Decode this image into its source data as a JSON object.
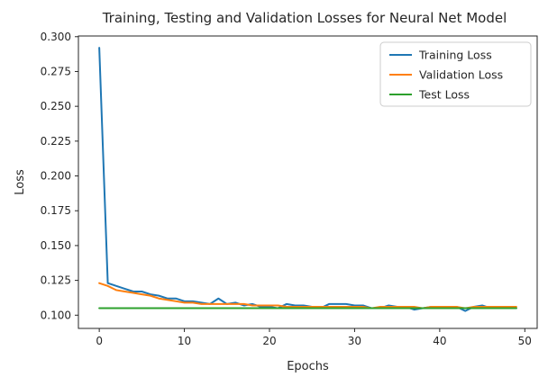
{
  "chart_data": {
    "type": "line",
    "title": "Training, Testing and Validation Losses for Neural Net Model",
    "xlabel": "Epochs",
    "ylabel": "Loss",
    "xlim": [
      -2.45,
      51.45
    ],
    "ylim": [
      0.0905,
      0.3005
    ],
    "xticks": [
      0,
      10,
      20,
      30,
      40,
      50
    ],
    "xtick_labels": [
      "0",
      "10",
      "20",
      "30",
      "40",
      "50"
    ],
    "yticks": [
      0.1,
      0.125,
      0.15,
      0.175,
      0.2,
      0.225,
      0.25,
      0.275,
      0.3
    ],
    "ytick_labels": [
      "0.100",
      "0.125",
      "0.150",
      "0.175",
      "0.200",
      "0.225",
      "0.250",
      "0.275",
      "0.300"
    ],
    "grid": false,
    "legend_position": "top-right",
    "x": [
      0,
      1,
      2,
      3,
      4,
      5,
      6,
      7,
      8,
      9,
      10,
      11,
      12,
      13,
      14,
      15,
      16,
      17,
      18,
      19,
      20,
      21,
      22,
      23,
      24,
      25,
      26,
      27,
      28,
      29,
      30,
      31,
      32,
      33,
      34,
      35,
      36,
      37,
      38,
      39,
      40,
      41,
      42,
      43,
      44,
      45,
      46,
      47,
      48,
      49
    ],
    "series": [
      {
        "name": "Training Loss",
        "color": "#1f77b4",
        "values": [
          0.292,
          0.123,
          0.121,
          0.119,
          0.117,
          0.117,
          0.115,
          0.114,
          0.112,
          0.112,
          0.11,
          0.11,
          0.109,
          0.108,
          0.112,
          0.108,
          0.109,
          0.107,
          0.108,
          0.106,
          0.106,
          0.105,
          0.108,
          0.107,
          0.107,
          0.106,
          0.105,
          0.108,
          0.108,
          0.108,
          0.107,
          0.107,
          0.105,
          0.105,
          0.107,
          0.106,
          0.106,
          0.104,
          0.105,
          0.106,
          0.106,
          0.106,
          0.106,
          0.103,
          0.106,
          0.107,
          0.105,
          0.106,
          0.105,
          0.105
        ]
      },
      {
        "name": "Validation Loss",
        "color": "#ff7f0e",
        "values": [
          0.123,
          0.121,
          0.118,
          0.117,
          0.116,
          0.115,
          0.114,
          0.112,
          0.111,
          0.11,
          0.109,
          0.109,
          0.108,
          0.108,
          0.108,
          0.108,
          0.108,
          0.108,
          0.107,
          0.107,
          0.107,
          0.107,
          0.106,
          0.106,
          0.106,
          0.106,
          0.106,
          0.106,
          0.106,
          0.106,
          0.106,
          0.106,
          0.105,
          0.106,
          0.106,
          0.106,
          0.106,
          0.106,
          0.105,
          0.106,
          0.106,
          0.106,
          0.106,
          0.105,
          0.106,
          0.106,
          0.106,
          0.106,
          0.106,
          0.106
        ]
      },
      {
        "name": "Test Loss",
        "color": "#2ca02c",
        "values": [
          0.105,
          0.105,
          0.105,
          0.105,
          0.105,
          0.105,
          0.105,
          0.105,
          0.105,
          0.105,
          0.105,
          0.105,
          0.105,
          0.105,
          0.105,
          0.105,
          0.105,
          0.105,
          0.105,
          0.105,
          0.105,
          0.105,
          0.105,
          0.105,
          0.105,
          0.105,
          0.105,
          0.105,
          0.105,
          0.105,
          0.105,
          0.105,
          0.105,
          0.105,
          0.105,
          0.105,
          0.105,
          0.105,
          0.105,
          0.105,
          0.105,
          0.105,
          0.105,
          0.105,
          0.105,
          0.105,
          0.105,
          0.105,
          0.105,
          0.105
        ]
      }
    ]
  },
  "colors": {
    "axes": "#262626",
    "legend_border": "#cccccc"
  }
}
